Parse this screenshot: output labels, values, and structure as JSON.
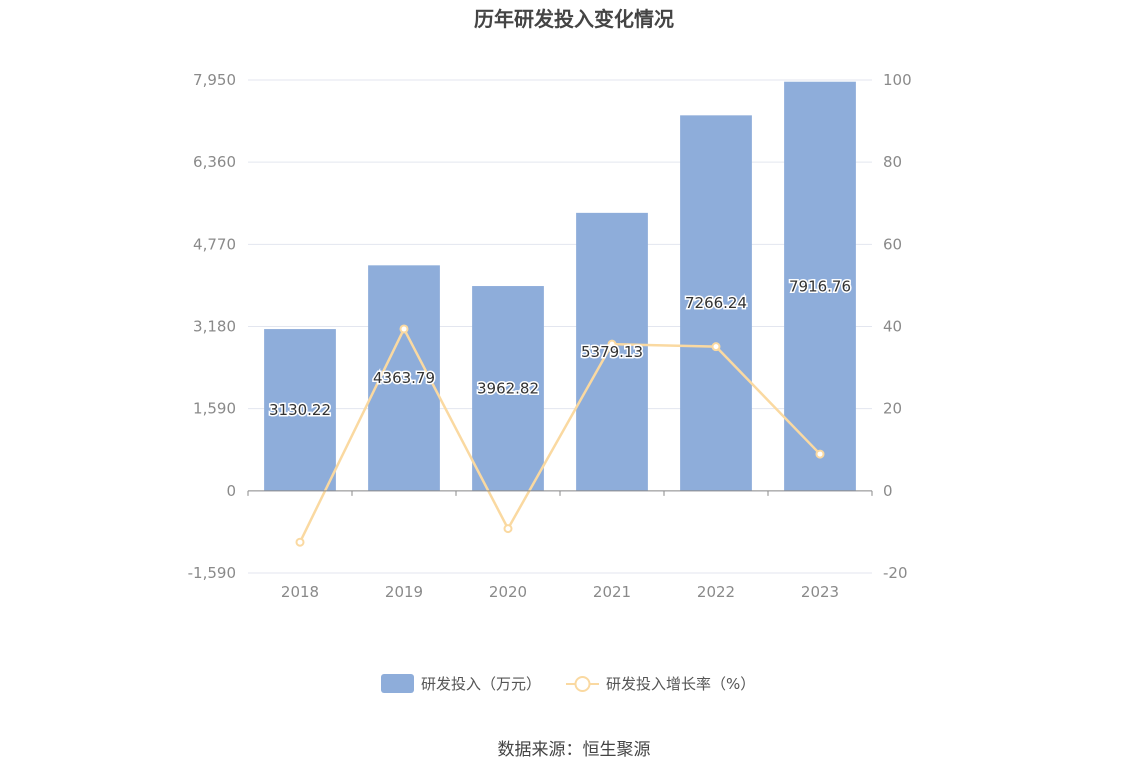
{
  "chart_data": {
    "type": "bar",
    "title": "历年研发投入变化情况",
    "categories": [
      "2018",
      "2019",
      "2020",
      "2021",
      "2022",
      "2023"
    ],
    "series": [
      {
        "name": "研发投入（万元）",
        "type": "bar",
        "axis": "left",
        "color": "#8eadda",
        "values": [
          3130.22,
          4363.79,
          3962.82,
          5379.13,
          7266.24,
          7916.76
        ],
        "labels": [
          "3130.22",
          "4363.79",
          "3962.82",
          "5379.13",
          "7266.24",
          "7916.76"
        ]
      },
      {
        "name": "研发投入增长率（%）",
        "type": "line",
        "axis": "right",
        "color": "#fad9a1",
        "values": [
          -12.5,
          39.4,
          -9.2,
          35.7,
          35.1,
          8.95
        ]
      }
    ],
    "y_left": {
      "ticks": [
        "7,950",
        "6,360",
        "4,770",
        "3,180",
        "1,590",
        "0",
        "-1,590"
      ],
      "range": [
        -1590,
        7950
      ]
    },
    "y_right": {
      "ticks": [
        "100",
        "80",
        "60",
        "40",
        "20",
        "0",
        "-20"
      ],
      "range": [
        -20,
        100
      ]
    },
    "grid": true,
    "legend_position": "bottom"
  },
  "source": "数据来源：恒生聚源"
}
